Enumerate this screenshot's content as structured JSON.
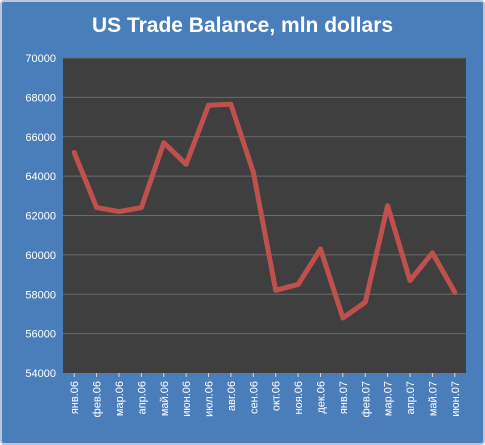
{
  "chart_data": {
    "type": "line",
    "title": "US Trade Balance, mln dollars",
    "categories": [
      "янв.06",
      "фев.06",
      "мар.06",
      "апр.06",
      "май.06",
      "июн.06",
      "июл.06",
      "авг.06",
      "сен.06",
      "окт.06",
      "ноя.06",
      "дек.06",
      "янв.07",
      "фев.07",
      "мар.07",
      "апр.07",
      "май.07",
      "июн.07"
    ],
    "series": [
      {
        "values": [
          65200,
          62400,
          62200,
          62400,
          65700,
          64600,
          67600,
          67650,
          64200,
          58200,
          58500,
          60300,
          56800,
          57600,
          62500,
          58700,
          60100,
          58100
        ]
      }
    ],
    "ylim": [
      54000,
      70000
    ],
    "yticks": [
      54000,
      56000,
      58000,
      60000,
      62000,
      64000,
      66000,
      68000,
      70000
    ],
    "grid": true,
    "legend": "none",
    "colors": {
      "background": "#4a7ebb",
      "plot": "#3f3f3f",
      "line": "#c0504d",
      "grid": "#6a6a6a"
    }
  }
}
